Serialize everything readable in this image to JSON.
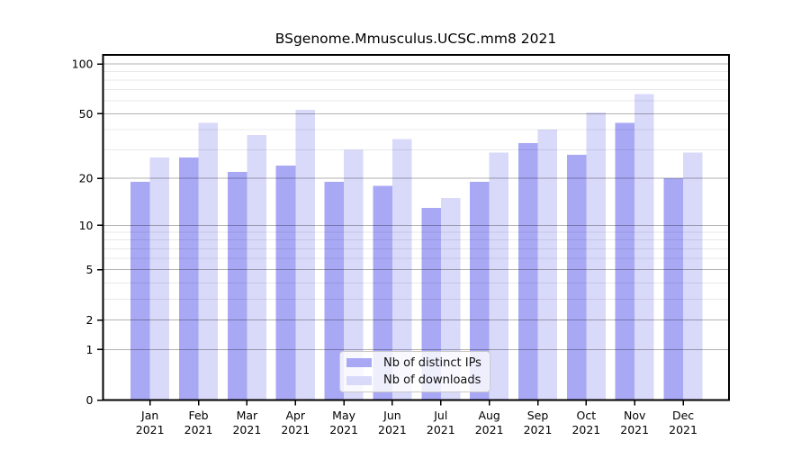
{
  "chart_data": {
    "type": "bar",
    "title": "BSgenome.Mmusculus.UCSC.mm8 2021",
    "categories": [
      "Jan",
      "Feb",
      "Mar",
      "Apr",
      "May",
      "Jun",
      "Jul",
      "Aug",
      "Sep",
      "Oct",
      "Nov",
      "Dec"
    ],
    "x_year": "2021",
    "series": [
      {
        "name": "Nb of distinct IPs",
        "color": "#a8a8f5",
        "values": [
          19,
          27,
          22,
          24,
          19,
          18,
          13,
          19,
          33,
          28,
          44,
          20
        ]
      },
      {
        "name": "Nb of downloads",
        "color": "#d9d9fa",
        "values": [
          27,
          44,
          37,
          53,
          30,
          35,
          15,
          29,
          40,
          51,
          66,
          29
        ]
      }
    ],
    "yaxis": {
      "scale": "log1p",
      "tick_values": [
        0,
        1,
        2,
        5,
        10,
        20,
        50,
        100
      ],
      "minor_gridline_values": [
        3,
        4,
        6,
        7,
        8,
        9,
        30,
        40,
        60,
        70,
        80,
        90
      ],
      "ylim": [
        0,
        113
      ]
    },
    "legend": {
      "entries": [
        "Nb of distinct IPs",
        "Nb of downloads"
      ],
      "position": "bottom-center"
    },
    "grid": "horizontal",
    "colors": {
      "major_grid": "rgba(0,0,0,0.30)",
      "minor_grid": "rgba(0,0,0,0.09)",
      "axis": "#000000",
      "text": "#000000",
      "background": "#ffffff"
    }
  }
}
